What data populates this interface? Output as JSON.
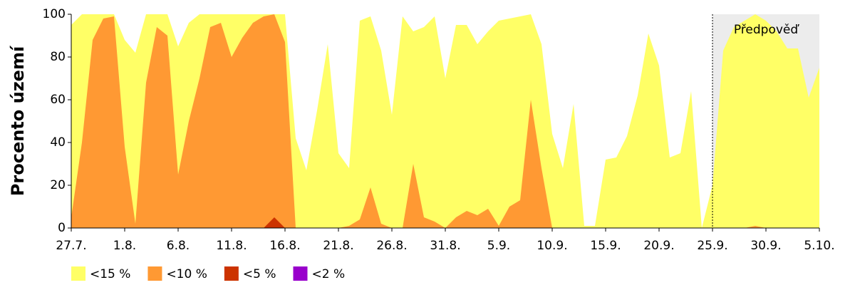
{
  "chart_data": {
    "type": "area",
    "y_label": "Procento území",
    "categories": [
      "27.7.",
      null,
      null,
      null,
      null,
      "1.8.",
      null,
      null,
      null,
      null,
      "6.8.",
      null,
      null,
      null,
      null,
      "11.8.",
      null,
      null,
      null,
      null,
      "16.8.",
      null,
      null,
      null,
      null,
      "21.8.",
      null,
      null,
      null,
      null,
      "26.8.",
      null,
      null,
      null,
      null,
      "31.8.",
      null,
      null,
      null,
      null,
      "5.9.",
      null,
      null,
      null,
      null,
      "10.9.",
      null,
      null,
      null,
      null,
      "15.9.",
      null,
      null,
      null,
      null,
      "20.9.",
      null,
      null,
      null,
      null,
      "25.9.",
      null,
      null,
      null,
      null,
      "30.9.",
      null,
      null,
      null,
      null,
      "5.10."
    ],
    "series": [
      {
        "name": "<15 %",
        "color": "#ffff66",
        "values": [
          95,
          100,
          100,
          100,
          100,
          88,
          82,
          100,
          100,
          100,
          85,
          96,
          100,
          100,
          100,
          100,
          100,
          100,
          100,
          100,
          100,
          42,
          27,
          55,
          86,
          35,
          28,
          97,
          99,
          83,
          53,
          99,
          92,
          94,
          99,
          70,
          95,
          95,
          86,
          92,
          97,
          98,
          99,
          100,
          86,
          44,
          28,
          58,
          1,
          1,
          32,
          33,
          43,
          62,
          91,
          76,
          33,
          35,
          64,
          0,
          20,
          83,
          94,
          97,
          100,
          97,
          92,
          84,
          84,
          61,
          75
        ]
      },
      {
        "name": "<10 %",
        "color": "#ff9933",
        "values": [
          5,
          40,
          88,
          98,
          99,
          38,
          2,
          68,
          94,
          90,
          25,
          50,
          70,
          94,
          96,
          80,
          89,
          96,
          99,
          100,
          87,
          0,
          0,
          0,
          0,
          0,
          1,
          4,
          19,
          2,
          0,
          0,
          30,
          5,
          3,
          0,
          5,
          8,
          6,
          9,
          1,
          10,
          13,
          60,
          28,
          0,
          0,
          0,
          0,
          0,
          0,
          0,
          0,
          0,
          0,
          0,
          0,
          0,
          0,
          0,
          0,
          0,
          0,
          0,
          1,
          0,
          0,
          0,
          0,
          0,
          0
        ]
      },
      {
        "name": "<5 %",
        "color": "#cc3300",
        "values": [
          0,
          0,
          0,
          0,
          0,
          0,
          0,
          0,
          0,
          0,
          0,
          0,
          0,
          0,
          0,
          0,
          0,
          0,
          0,
          5,
          0,
          0,
          0,
          0,
          0,
          0,
          0,
          0,
          0,
          0,
          0,
          0,
          0,
          0,
          0,
          0,
          0,
          0,
          0,
          0,
          0,
          0,
          0,
          0,
          0,
          0,
          0,
          0,
          0,
          0,
          0,
          0,
          0,
          0,
          0,
          0,
          0,
          0,
          0,
          0,
          0,
          0,
          0,
          0,
          0,
          0,
          0,
          0,
          0,
          0,
          0
        ]
      },
      {
        "name": "<2 %",
        "color": "#9900cc",
        "values": [
          0,
          0,
          0,
          0,
          0,
          0,
          0,
          0,
          0,
          0,
          0,
          0,
          0,
          0,
          0,
          0,
          0,
          0,
          0,
          0,
          0,
          0,
          0,
          0,
          0,
          0,
          0,
          0,
          0,
          0,
          0,
          0,
          0,
          0,
          0,
          0,
          0,
          0,
          0,
          0,
          0,
          0,
          0,
          0,
          0,
          0,
          0,
          0,
          0,
          0,
          0,
          0,
          0,
          0,
          0,
          0,
          0,
          0,
          0,
          0,
          0,
          0,
          0,
          0,
          0,
          0,
          0,
          0,
          0,
          0,
          0
        ]
      }
    ],
    "forecast": {
      "label": "Předpověď",
      "from": "25.9."
    },
    "ylim": [
      0,
      100
    ],
    "yticks": [
      0,
      20,
      40,
      60,
      80,
      100
    ]
  }
}
